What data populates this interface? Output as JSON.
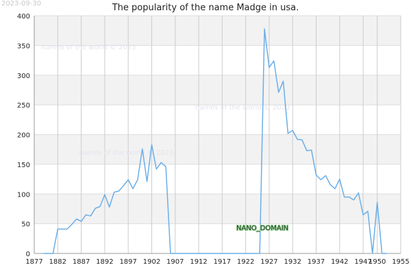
{
  "header": {
    "date_stamp": "2023-09-30",
    "watermark": "names of the world © 2023",
    "badge": "NANO_DOMAIN"
  },
  "chart_data": {
    "type": "line",
    "title": "The popularity of the name Madge in usa.",
    "xlabel": "",
    "ylabel": "",
    "xlim": [
      1877,
      1955
    ],
    "ylim": [
      0,
      400
    ],
    "x_ticks": [
      1877,
      1882,
      1887,
      1892,
      1897,
      1902,
      1907,
      1912,
      1917,
      1922,
      1927,
      1932,
      1937,
      1942,
      1947,
      1950,
      1955
    ],
    "y_ticks": [
      0,
      50,
      100,
      150,
      200,
      250,
      300,
      350,
      400
    ],
    "grid": true,
    "line_color": "#6aaee8",
    "series": [
      {
        "x": [
          1879,
          1880,
          1881,
          1882,
          1883,
          1884,
          1885,
          1886,
          1887,
          1888,
          1889,
          1890,
          1891,
          1892,
          1893,
          1894,
          1895,
          1896,
          1897,
          1898,
          1899,
          1900,
          1901,
          1902,
          1903,
          1904,
          1905,
          1906,
          1907,
          1908,
          1909,
          1910,
          1911,
          1912,
          1913,
          1914,
          1915,
          1916,
          1917,
          1918,
          1919,
          1920,
          1921,
          1922,
          1923,
          1924,
          1925,
          1926,
          1927,
          1928,
          1929,
          1930,
          1931,
          1932,
          1933,
          1934,
          1935,
          1936,
          1937,
          1938,
          1939,
          1940,
          1941,
          1942,
          1943,
          1944,
          1945,
          1946,
          1947,
          1948,
          1949,
          1950,
          1951,
          1952
        ],
        "y": [
          0,
          0,
          0,
          41,
          41,
          41,
          49,
          58,
          54,
          65,
          63,
          76,
          79,
          99,
          78,
          103,
          105,
          114,
          124,
          109,
          124,
          176,
          121,
          183,
          142,
          153,
          146,
          0,
          0,
          0,
          0,
          0,
          0,
          0,
          0,
          0,
          0,
          0,
          0,
          0,
          0,
          0,
          0,
          0,
          0,
          0,
          0,
          378,
          313,
          324,
          271,
          290,
          202,
          207,
          192,
          191,
          173,
          174,
          132,
          124,
          131,
          116,
          109,
          125,
          95,
          95,
          90,
          102,
          65,
          71,
          0,
          86,
          0,
          0
        ]
      }
    ]
  }
}
